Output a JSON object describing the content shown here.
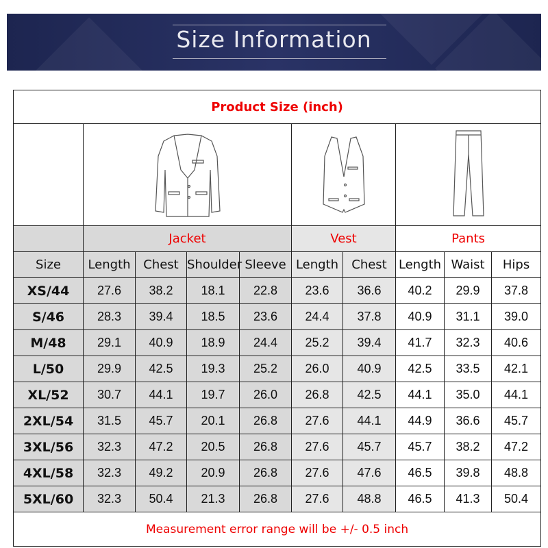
{
  "banner": {
    "title": "Size Information"
  },
  "table": {
    "title": "Product Size  (inch)",
    "groups": {
      "jacket": "Jacket",
      "vest": "Vest",
      "pants": "Pants"
    },
    "columns": [
      "Size",
      "Length",
      "Chest",
      "Shoulder",
      "Sleeve",
      "Length",
      "Chest",
      "Length",
      "Waist",
      "Hips"
    ],
    "rows": [
      [
        "XS/44",
        "27.6",
        "38.2",
        "18.1",
        "22.8",
        "23.6",
        "36.6",
        "40.2",
        "29.9",
        "37.8"
      ],
      [
        "S/46",
        "28.3",
        "39.4",
        "18.5",
        "23.6",
        "24.4",
        "37.8",
        "40.9",
        "31.1",
        "39.0"
      ],
      [
        "M/48",
        "29.1",
        "40.9",
        "18.9",
        "24.4",
        "25.2",
        "39.4",
        "41.7",
        "32.3",
        "40.6"
      ],
      [
        "L/50",
        "29.9",
        "42.5",
        "19.3",
        "25.2",
        "26.0",
        "40.9",
        "42.5",
        "33.5",
        "42.1"
      ],
      [
        "XL/52",
        "30.7",
        "44.1",
        "19.7",
        "26.0",
        "26.8",
        "42.5",
        "44.1",
        "35.0",
        "44.1"
      ],
      [
        "2XL/54",
        "31.5",
        "45.7",
        "20.1",
        "26.8",
        "27.6",
        "44.1",
        "44.9",
        "36.6",
        "45.7"
      ],
      [
        "3XL/56",
        "32.3",
        "47.2",
        "20.5",
        "26.8",
        "27.6",
        "45.7",
        "45.7",
        "38.2",
        "47.2"
      ],
      [
        "4XL/58",
        "32.3",
        "49.2",
        "20.9",
        "26.8",
        "27.6",
        "47.6",
        "46.5",
        "39.8",
        "48.8"
      ],
      [
        "5XL/60",
        "32.3",
        "50.4",
        "21.3",
        "26.8",
        "27.6",
        "48.8",
        "46.5",
        "41.3",
        "50.4"
      ]
    ],
    "footer": "Measurement error range will be +/- 0.5 inch"
  },
  "colors": {
    "accent": "#e00000",
    "banner": "#1d2550"
  }
}
